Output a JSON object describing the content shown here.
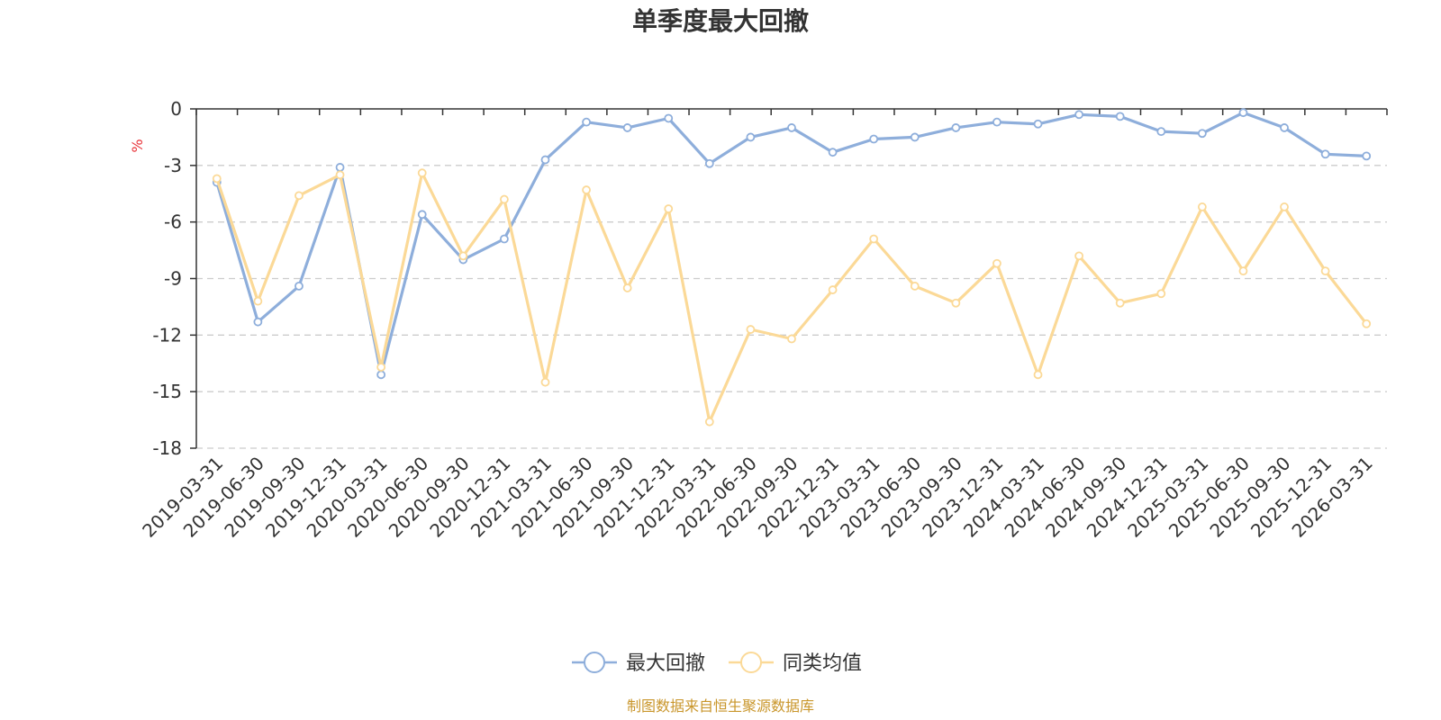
{
  "chart_data": {
    "type": "line",
    "title": "单季度最大回撤",
    "ylabel": "%",
    "ylim": [
      -18,
      0
    ],
    "yticks": [
      0,
      -3,
      -6,
      -9,
      -12,
      -15,
      -18
    ],
    "grid": true,
    "legend_position": "bottom-center",
    "categories": [
      "2019-03-31",
      "2019-06-30",
      "2019-09-30",
      "2019-12-31",
      "2020-03-31",
      "2020-06-30",
      "2020-09-30",
      "2020-12-31",
      "2021-03-31",
      "2021-06-30",
      "2021-09-30",
      "2021-12-31",
      "2022-03-31",
      "2022-06-30",
      "2022-09-30",
      "2022-12-31",
      "2023-03-31",
      "2023-06-30",
      "2023-09-30",
      "2023-12-31",
      "2024-03-31",
      "2024-06-30",
      "2024-09-30",
      "2024-12-31",
      "2025-03-31",
      "2025-06-30",
      "2025-09-30",
      "2025-12-31",
      "2026-03-31"
    ],
    "series": [
      {
        "name": "最大回撤",
        "color": "#8eaedb",
        "values": [
          -3.9,
          -11.3,
          -9.4,
          -3.1,
          -14.1,
          -5.6,
          -8.0,
          -6.9,
          -2.7,
          -0.7,
          -1.0,
          -0.5,
          -2.9,
          -1.5,
          -1.0,
          -2.3,
          -1.6,
          -1.5,
          -1.0,
          -0.7,
          -0.8,
          -0.3,
          -0.4,
          -1.2,
          -1.3,
          -0.2,
          -1.0,
          -2.4,
          -2.5
        ]
      },
      {
        "name": "同类均值",
        "color": "#fbd997",
        "values": [
          -3.7,
          -10.2,
          -4.6,
          -3.5,
          -13.7,
          -3.4,
          -7.8,
          -4.8,
          -14.5,
          -4.3,
          -9.5,
          -5.3,
          -16.6,
          -11.7,
          -12.2,
          -9.6,
          -6.9,
          -9.4,
          -10.3,
          -8.2,
          -14.1,
          -7.8,
          -10.3,
          -9.8,
          -5.2,
          -8.6,
          -5.2,
          -8.6,
          -11.4
        ]
      }
    ]
  },
  "source_text": "制图数据来自恒生聚源数据库",
  "colors": {
    "title": "#333333",
    "axis": "#333333",
    "grid": "#cccccc",
    "unit": "#e8343a",
    "source": "#c9962b"
  }
}
